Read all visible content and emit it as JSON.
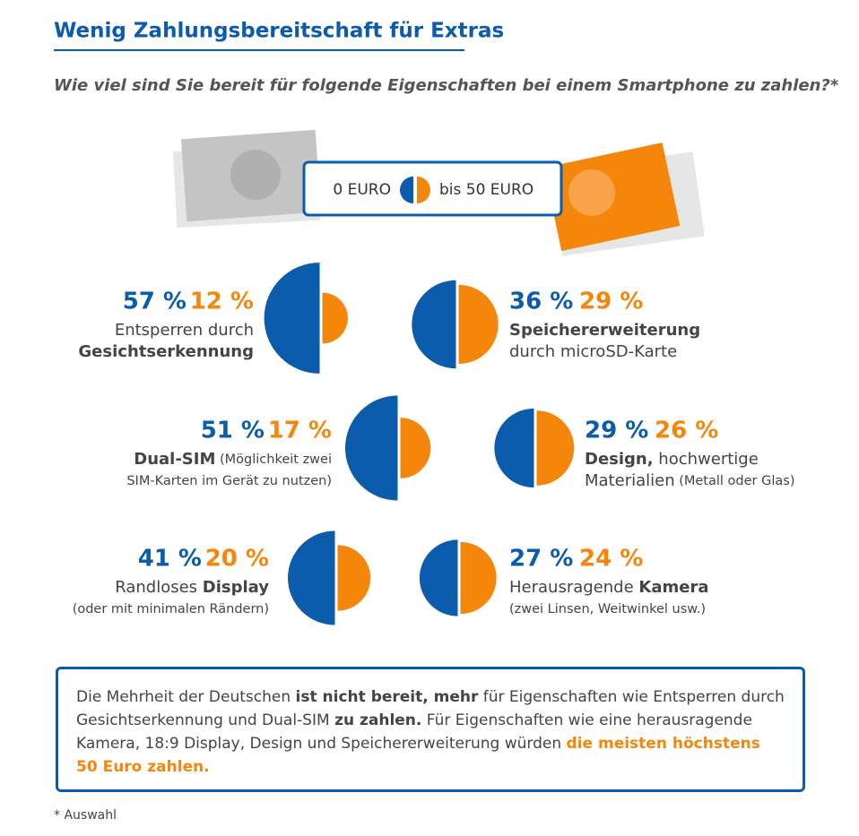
{
  "chart_data": {
    "type": "half-circle",
    "title": "Wenig Zahlungsbereitschaft für Extras",
    "subtitle": "Wie viel sind Sie bereit für folgende Eigenschaften bei einem Smartphone zu zahlen?*",
    "categories": [
      [
        [
          {
            "text": "Entsperren durch"
          }
        ],
        [
          {
            "text": "Gesichtserkennung",
            "style": "bold"
          }
        ]
      ],
      [
        [
          {
            "text": "Dual-SIM",
            "style": "bold"
          },
          {
            "text": " (Möglichkeit zwei",
            "style": "small"
          }
        ],
        [
          {
            "text": "SIM-Karten im Gerät zu nutzen)",
            "style": "small"
          }
        ]
      ],
      [
        [
          {
            "text": "Randloses "
          },
          {
            "text": "Display",
            "style": "bold"
          }
        ],
        [
          {
            "text": "(oder mit minimalen Rändern)",
            "style": "small"
          }
        ]
      ],
      [
        [
          {
            "text": "Speichererweiterung",
            "style": "bold"
          }
        ],
        [
          {
            "text": "durch microSD-Karte"
          }
        ]
      ],
      [
        [
          {
            "text": "Design,",
            "style": "bold"
          },
          {
            "text": " hochwertige"
          }
        ],
        [
          {
            "text": "Materialien"
          },
          {
            "text": " (Metall oder Glas)",
            "style": "small"
          }
        ]
      ],
      [
        [
          {
            "text": "Herausragende "
          },
          {
            "text": "Kamera",
            "style": "bold"
          }
        ],
        [
          {
            "text": "(zwei Linsen, Weitwinkel usw.)",
            "style": "small"
          }
        ]
      ]
    ],
    "series": [
      {
        "name": "0 EURO",
        "color": "#0b5cad",
        "values": [
          57,
          51,
          41,
          36,
          29,
          27
        ],
        "value_labels": [
          "57 %",
          "51 %",
          "41 %",
          "36 %",
          "29 %",
          "27 %"
        ]
      },
      {
        "name": "bis 50 EURO",
        "color": "#f5860c",
        "values": [
          12,
          17,
          20,
          29,
          26,
          24
        ],
        "value_labels": [
          "12 %",
          "17 %",
          "20 %",
          "29 %",
          "26 %",
          "24 %"
        ]
      }
    ],
    "note": [
      {
        "text": "Die Mehrheit der Deutschen "
      },
      {
        "text": "ist nicht bereit, mehr",
        "style": "bold"
      },
      {
        "text": " für Eigenschaften wie Entsperren durch Gesichtserkennung und Dual-SIM "
      },
      {
        "text": "zu zahlen.",
        "style": "bold"
      },
      {
        "text": " Für Eigenschaften wie eine herausragende Kamera, 18:9 Display, Design und Speichererweiterung würden "
      },
      {
        "text": "die meisten höchstens 50 Euro zahlen.",
        "style": "highlight"
      }
    ],
    "footnote": "* Auswahl"
  }
}
